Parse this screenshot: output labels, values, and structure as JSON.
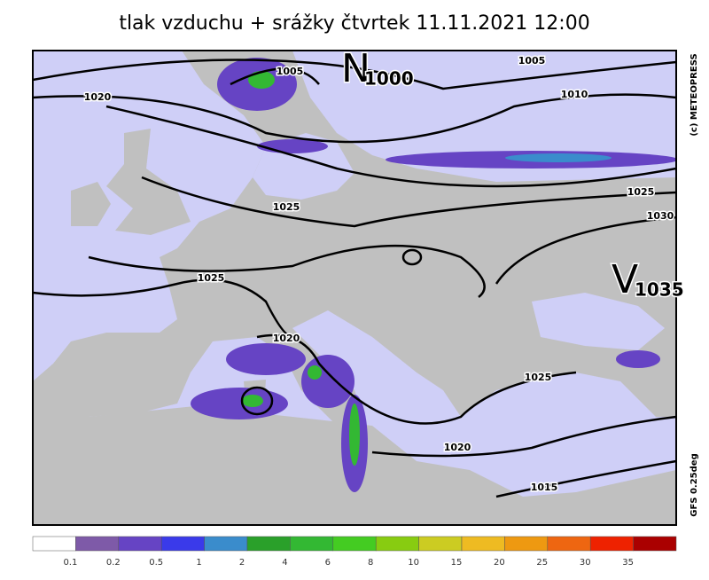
{
  "title": "tlak vzduchu + srážky čtvrtek 11.11.2021 12:00",
  "credit": "(c) METEOPRESS",
  "model": "GFS 0.25deg",
  "centers": [
    {
      "letter": "N",
      "value": 1000
    },
    {
      "letter": "V",
      "value": 1035
    }
  ],
  "isobar_labels": [
    1005,
    1005,
    1020,
    1010,
    1025,
    1030,
    1025,
    1025,
    1020,
    1025,
    1020,
    1015
  ],
  "legend": {
    "colors": [
      "#ffffff",
      "#7e5aa8",
      "#6644c4",
      "#3a3aea",
      "#3a8ccc",
      "#2aa02a",
      "#33b833",
      "#44cc22",
      "#88cc11",
      "#cccc22",
      "#eebb22",
      "#ee9911",
      "#ee6611",
      "#ee2200",
      "#aa0000"
    ],
    "labels": [
      0.1,
      0.2,
      0.5,
      1,
      2,
      4,
      6,
      8,
      10,
      15,
      20,
      25,
      30,
      35
    ]
  }
}
